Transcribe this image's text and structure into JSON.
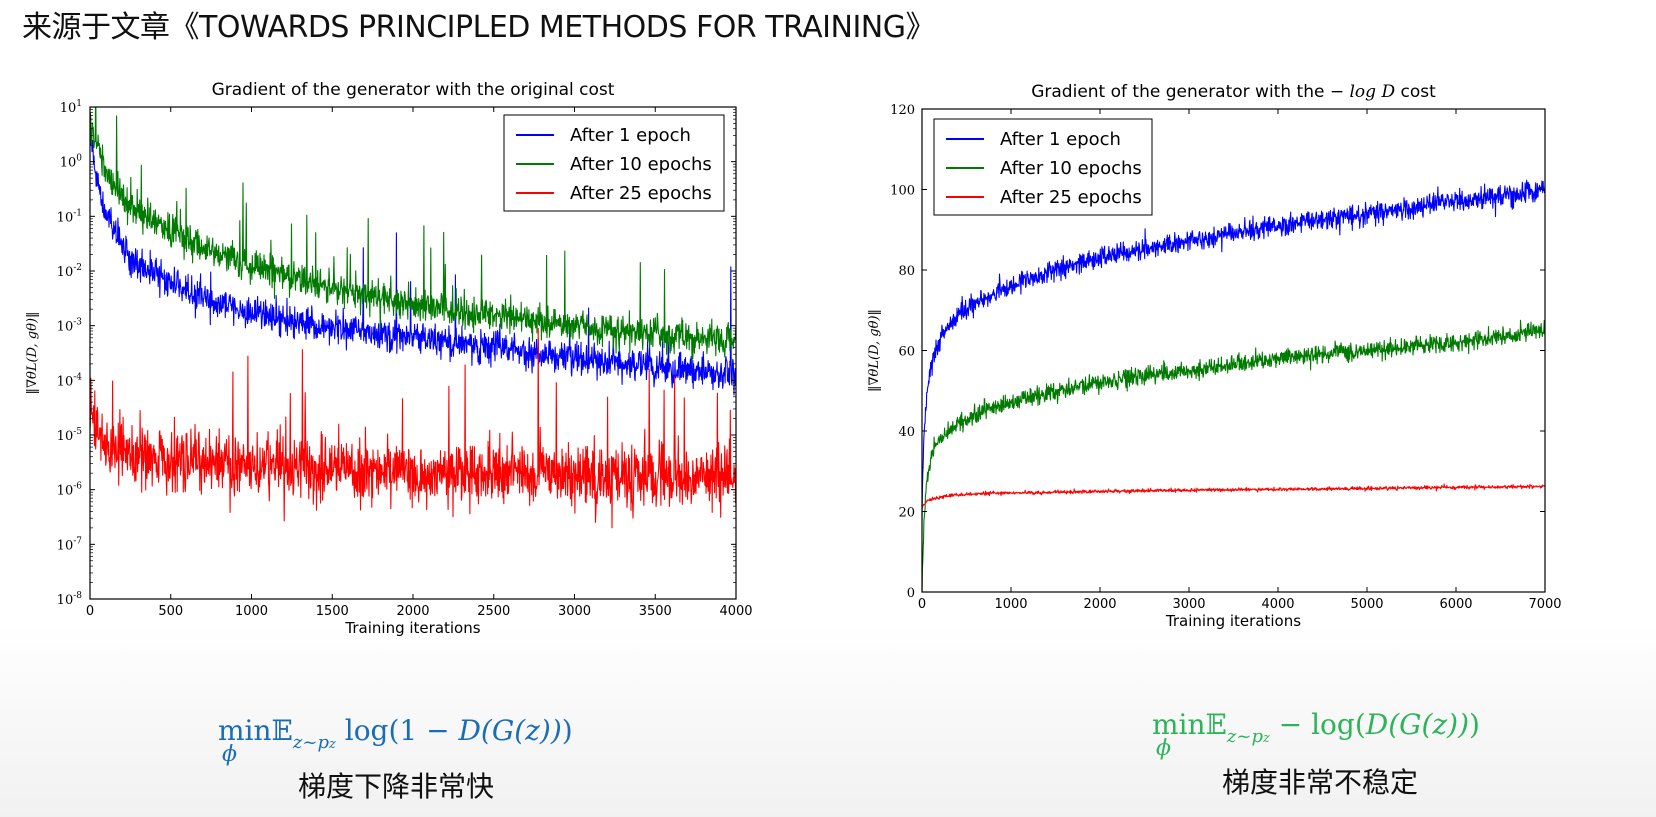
{
  "slide": {
    "title": "来源于文章《TOWARDS PRINCIPLED METHODS FOR TRAINING》",
    "left_formula": {
      "op": "min",
      "op_sub": "ϕ",
      "expectation": "𝔼",
      "expectation_sub": "z~p",
      "expectation_sub2": "z",
      "body_prefix": " log(1 − ",
      "body_func": "D(G(z))",
      "body_suffix": ")"
    },
    "right_formula": {
      "op": "min",
      "op_sub": "ϕ",
      "expectation": "𝔼",
      "expectation_sub": "z~p",
      "expectation_sub2": "z",
      "body_prefix": " − log(",
      "body_func": "D(G(z))",
      "body_suffix": ")"
    },
    "left_caption": "梯度下降非常快",
    "right_caption": "梯度非常不稳定",
    "colors": {
      "blue": "#0000ff",
      "green": "#007a00",
      "red": "#ff0000",
      "left_formula": "#1a6db5",
      "right_formula": "#2db45a"
    }
  },
  "chart_data": [
    {
      "type": "line",
      "title": "Gradient of the generator with the original cost",
      "xlabel": "Training iterations",
      "ylabel": "‖∇θL(D, gθ)‖",
      "y_scale": "log",
      "xlim": [
        0,
        4000
      ],
      "ylim": [
        1e-08,
        10
      ],
      "x_ticks": [
        0,
        500,
        1000,
        1500,
        2000,
        2500,
        3000,
        3500,
        4000
      ],
      "y_ticks": [
        {
          "base": "10",
          "exp": "-8",
          "value": 1e-08
        },
        {
          "base": "10",
          "exp": "-7",
          "value": 1e-07
        },
        {
          "base": "10",
          "exp": "-6",
          "value": 1e-06
        },
        {
          "base": "10",
          "exp": "-5",
          "value": 1e-05
        },
        {
          "base": "10",
          "exp": "-4",
          "value": 0.0001
        },
        {
          "base": "10",
          "exp": "-3",
          "value": 0.001
        },
        {
          "base": "10",
          "exp": "-2",
          "value": 0.01
        },
        {
          "base": "10",
          "exp": "-1",
          "value": 0.1
        },
        {
          "base": "10",
          "exp": "0",
          "value": 1
        },
        {
          "base": "10",
          "exp": "1",
          "value": 10
        }
      ],
      "legend_position": "upper right",
      "grid": false,
      "series": [
        {
          "name": "After 1 epoch",
          "color": "#0000ff",
          "x": [
            0,
            50,
            100,
            200,
            300,
            500,
            800,
            1000,
            1500,
            2000,
            2500,
            3000,
            3500,
            4000
          ],
          "y": [
            2.5,
            0.4,
            0.1,
            0.03,
            0.013,
            0.006,
            0.0025,
            0.0017,
            0.0009,
            0.0006,
            0.0004,
            0.00025,
            0.00018,
            0.00012
          ],
          "noise_decades": 0.3,
          "spike_rate": 0.003,
          "spike_decades": 2.0
        },
        {
          "name": "After 10 epochs",
          "color": "#007a00",
          "x": [
            0,
            50,
            100,
            200,
            300,
            500,
            800,
            1000,
            1500,
            2000,
            2500,
            3000,
            3500,
            4000
          ],
          "y": [
            5,
            1.6,
            0.6,
            0.25,
            0.12,
            0.05,
            0.02,
            0.012,
            0.005,
            0.0025,
            0.0015,
            0.001,
            0.0007,
            0.0005
          ],
          "noise_decades": 0.3,
          "spike_rate": 0.012,
          "spike_decades": 1.4
        },
        {
          "name": "After 25 epochs",
          "color": "#ff0000",
          "x": [
            0,
            50,
            100,
            400,
            800,
            1500,
            2000,
            2500,
            3000,
            3500,
            4000
          ],
          "y": [
            3e-05,
            1e-05,
            6e-06,
            4e-06,
            3e-06,
            2.5e-06,
            2.2e-06,
            2e-06,
            1.8e-06,
            1.6e-06,
            1.5e-06
          ],
          "noise_decades": 0.6,
          "spike_rate": 0.012,
          "spike_decades": 2.2
        }
      ]
    },
    {
      "type": "line",
      "title_prefix": "Gradient of the generator with the ",
      "title_math": "− log D",
      "title_suffix": " cost",
      "xlabel": "Training iterations",
      "ylabel": "‖∇θL(D, gθ)‖",
      "y_scale": "linear",
      "xlim": [
        0,
        7000
      ],
      "ylim": [
        0,
        120
      ],
      "x_ticks": [
        0,
        1000,
        2000,
        3000,
        4000,
        5000,
        6000,
        7000
      ],
      "y_ticks": [
        0,
        20,
        40,
        60,
        80,
        100,
        120
      ],
      "legend_position": "upper left",
      "grid": false,
      "series": [
        {
          "name": "After 1 epoch",
          "color": "#0000ff",
          "x": [
            0,
            20,
            50,
            100,
            200,
            400,
            700,
            1000,
            1500,
            2000,
            3000,
            4000,
            5000,
            6000,
            7000
          ],
          "y": [
            20,
            38,
            48,
            56,
            63,
            69,
            73,
            76,
            80,
            83,
            87,
            91,
            94,
            97,
            100
          ],
          "noise": 2.2
        },
        {
          "name": "After 10 epochs",
          "color": "#007a00",
          "x": [
            0,
            20,
            50,
            100,
            200,
            400,
            700,
            1000,
            1500,
            2000,
            3000,
            4000,
            5000,
            6000,
            7000
          ],
          "y": [
            0,
            16,
            27,
            33,
            38,
            42,
            45,
            47,
            50,
            52,
            55,
            58,
            60,
            62,
            65
          ],
          "noise": 1.8
        },
        {
          "name": "After 25 epochs",
          "color": "#ff0000",
          "x": [
            0,
            50,
            100,
            300,
            700,
            1000,
            2000,
            3000,
            4000,
            5000,
            6000,
            7000
          ],
          "y": [
            21,
            22.5,
            23,
            24,
            24.5,
            24.6,
            25,
            25.3,
            25.5,
            25.7,
            26,
            26.2
          ],
          "noise": 0.35
        }
      ]
    }
  ]
}
